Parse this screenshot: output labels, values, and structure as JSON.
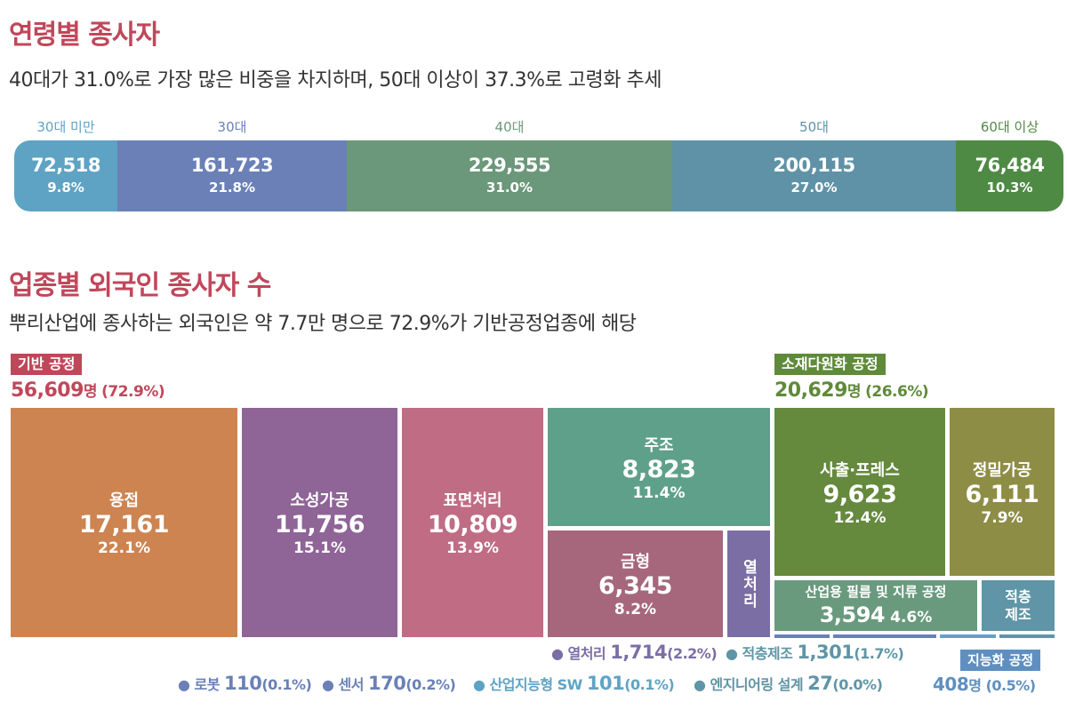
{
  "age_section": {
    "title": "연령별 종사자",
    "subtitle": "40대가 31.0%로 가장 많은 비중을 차지하며, 50대 이상이 37.3%로 고령화 추세"
  },
  "industry_section": {
    "title": "업종별 외국인 종사자 수",
    "subtitle": "뿌리산업에 종사하는 외국인은 약 7.7만 명으로 72.9%가 기반공정업종에 해당"
  },
  "chart_data": [
    {
      "type": "bar",
      "orientation": "horizontal-stacked",
      "categories": [
        "30대 미만",
        "30대",
        "40대",
        "50대",
        "60대 이상"
      ],
      "values": [
        72518,
        161723,
        229555,
        200115,
        76484
      ],
      "value_labels": [
        "72,518",
        "161,723",
        "229,555",
        "200,115",
        "76,484"
      ],
      "percent_labels": [
        "9.8%",
        "21.8%",
        "31.0%",
        "27.0%",
        "10.3%"
      ],
      "colors": [
        "#5fa3c4",
        "#6a80b7",
        "#6b977a",
        "#5f92a7",
        "#4f8a45"
      ]
    },
    {
      "type": "treemap",
      "groups": [
        {
          "name": "기반 공정",
          "total": "56,609",
          "unit": "명",
          "percent": "(72.9%)",
          "color": "#c0475a",
          "items": [
            {
              "name": "용접",
              "value": 17161,
              "label": "17,161",
              "percent": "22.1%",
              "color": "#cd8450"
            },
            {
              "name": "소성가공",
              "value": 11756,
              "label": "11,756",
              "percent": "15.1%",
              "color": "#8f6497"
            },
            {
              "name": "표면처리",
              "value": 10809,
              "label": "10,809",
              "percent": "13.9%",
              "color": "#bf6c84"
            },
            {
              "name": "주조",
              "value": 8823,
              "label": "8,823",
              "percent": "11.4%",
              "color": "#5fa08a"
            },
            {
              "name": "금형",
              "value": 6345,
              "label": "6,345",
              "percent": "8.2%",
              "color": "#a6677c"
            },
            {
              "name": "열처리",
              "value": 1714,
              "label": "1,714",
              "percent": "(2.2%)",
              "color": "#7b6ea5"
            }
          ]
        },
        {
          "name": "소재다원화 공정",
          "total": "20,629",
          "unit": "명",
          "percent": "(26.6%)",
          "color": "#5f8a3a",
          "items": [
            {
              "name": "사출·프레스",
              "value": 9623,
              "label": "9,623",
              "percent": "12.4%",
              "color": "#65893d"
            },
            {
              "name": "정밀가공",
              "value": 6111,
              "label": "6,111",
              "percent": "7.9%",
              "color": "#8e8d45"
            },
            {
              "name": "산업용 필름 및 지류 공정",
              "value": 3594,
              "label": "3,594",
              "percent": "4.6%",
              "color": "#6a9a7e"
            },
            {
              "name": "적층제조",
              "value": 1301,
              "label": "1,301",
              "percent": "(1.7%)",
              "color": "#5f95a6"
            }
          ]
        },
        {
          "name": "지능화 공정",
          "total": "408",
          "unit": "명",
          "percent": "(0.5%)",
          "color": "#5f8fc0",
          "items": [
            {
              "name": "로봇",
              "value": 110,
              "label": "110",
              "percent": "(0.1%)",
              "color": "#6a80b7"
            },
            {
              "name": "센서",
              "value": 170,
              "label": "170",
              "percent": "(0.2%)",
              "color": "#6a80b7"
            },
            {
              "name": "산업지능형 SW",
              "value": 101,
              "label": "101",
              "percent": "(0.1%)",
              "color": "#5fa3c4"
            },
            {
              "name": "엔지니어링 설계",
              "value": 27,
              "label": "27",
              "percent": "(0.0%)",
              "color": "#5f95a6"
            }
          ]
        }
      ]
    }
  ]
}
